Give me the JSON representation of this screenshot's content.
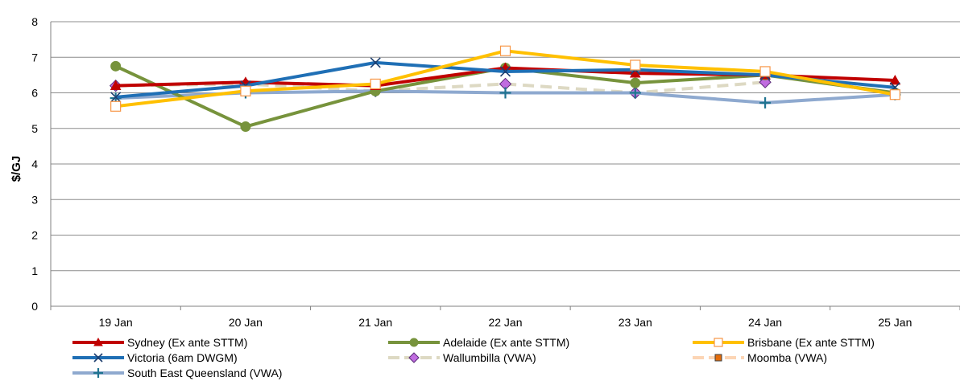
{
  "chart_data": {
    "type": "line",
    "title": "",
    "xlabel": "",
    "ylabel": "$/GJ",
    "ylim": [
      0,
      8
    ],
    "yticks": [
      0,
      1,
      2,
      3,
      4,
      5,
      6,
      7,
      8
    ],
    "grid": true,
    "legend_position": "bottom",
    "categories": [
      "19 Jan",
      "20 Jan",
      "21 Jan",
      "22 Jan",
      "23 Jan",
      "24 Jan",
      "25 Jan"
    ],
    "series": [
      {
        "name": "Sydney (Ex ante STTM)",
        "color": "#C00000",
        "marker": "triangle",
        "dash": false,
        "values": [
          6.2,
          6.3,
          6.2,
          6.7,
          6.55,
          6.5,
          6.35
        ]
      },
      {
        "name": "Adelaide (Ex ante STTM)",
        "color": "#77933C",
        "marker": "circle",
        "dash": false,
        "values": [
          6.75,
          5.05,
          6.05,
          6.7,
          6.28,
          6.5,
          6.0
        ]
      },
      {
        "name": "Brisbane (Ex ante STTM)",
        "color": "#FFC000",
        "marker": "square-open",
        "dash": false,
        "values": [
          5.62,
          6.05,
          6.25,
          7.18,
          6.78,
          6.6,
          5.95
        ]
      },
      {
        "name": "Victoria (6am DWGM)",
        "color": "#1F6FB5",
        "marker": "x",
        "dash": false,
        "values": [
          5.88,
          6.2,
          6.85,
          6.6,
          6.65,
          6.5,
          6.15
        ]
      },
      {
        "name": "Wallumbilla (VWA)",
        "color": "#DDD9C3",
        "marker": "diamond",
        "dash": true,
        "values": [
          6.2,
          6.25,
          6.05,
          6.25,
          6.0,
          6.3,
          null
        ]
      },
      {
        "name": "Moomba (VWA)",
        "color": "#FCD5B5",
        "marker": "square-filled",
        "dash": true,
        "values": [
          null,
          null,
          null,
          null,
          null,
          null,
          null
        ]
      },
      {
        "name": "South East Queensland (VWA)",
        "color": "#8EA9CF",
        "marker": "plus",
        "dash": false,
        "values": [
          5.85,
          6.0,
          6.05,
          6.0,
          6.0,
          5.72,
          5.95
        ]
      }
    ]
  }
}
